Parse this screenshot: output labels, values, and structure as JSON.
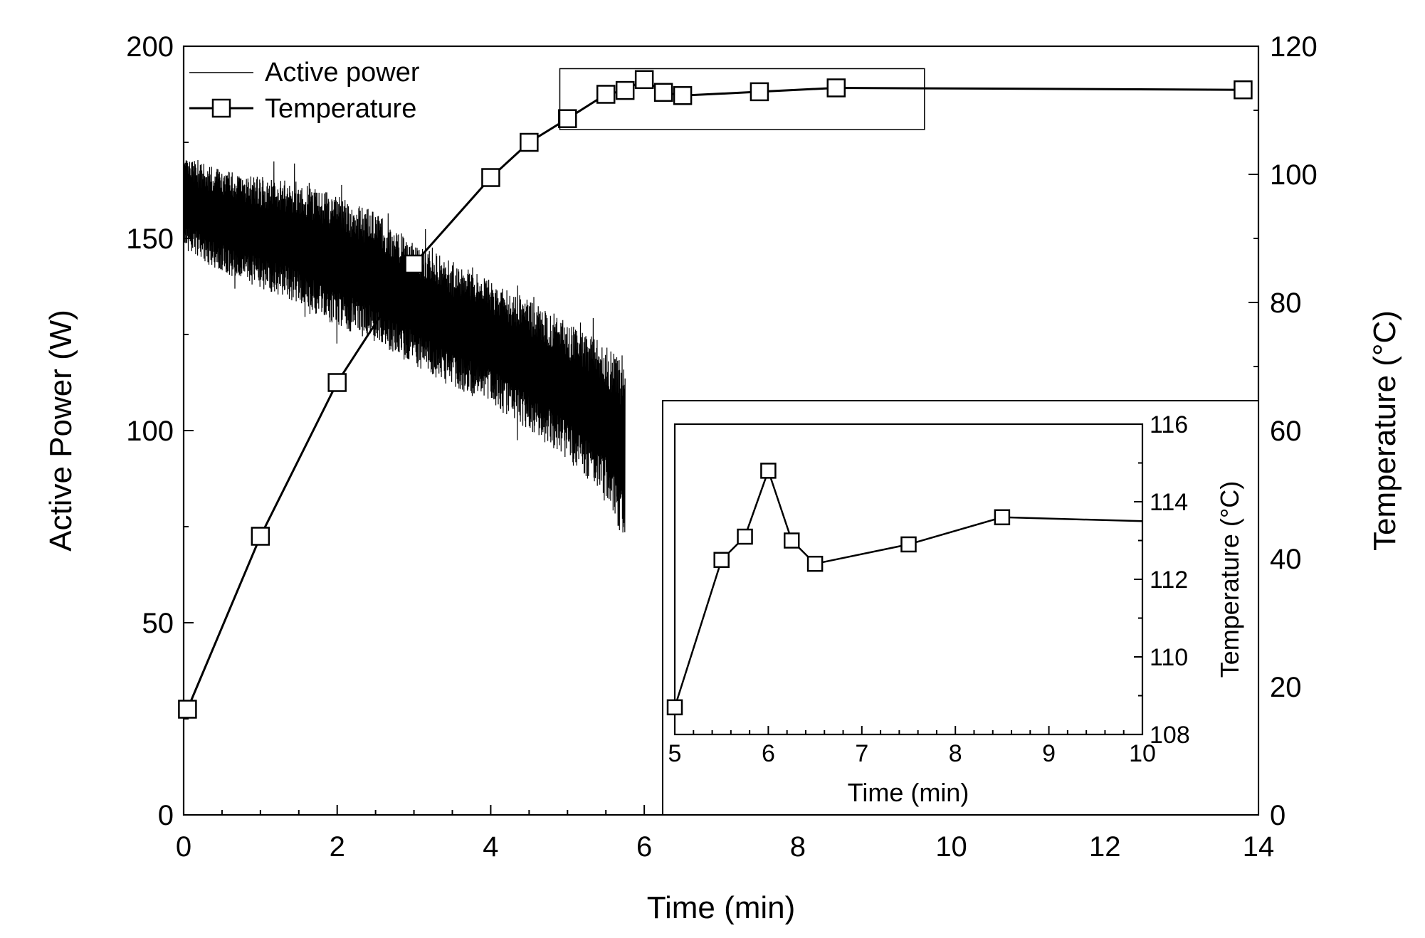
{
  "chart_data": [
    {
      "type": "line",
      "role": "main",
      "xlabel": "Time (min)",
      "ylabel_left": "Active Power (W)",
      "ylabel_right": "Temperature (°C)",
      "xlim": [
        0,
        14
      ],
      "ylim_left": [
        0,
        200
      ],
      "ylim_right": [
        0,
        120
      ],
      "x_ticks": [
        0,
        2,
        4,
        6,
        8,
        10,
        12,
        14
      ],
      "y_left_ticks": [
        0,
        50,
        100,
        150,
        200
      ],
      "y_right_ticks": [
        0,
        20,
        40,
        60,
        80,
        100,
        120
      ],
      "grid": false,
      "legend_position": "top-left",
      "legend": [
        "Active power",
        "Temperature"
      ],
      "series": [
        {
          "name": "Active power",
          "axis": "left",
          "style": "thin line, oscillating",
          "envelope": {
            "x": [
              0,
              0.5,
              1,
              1.5,
              2,
              2.5,
              3,
              3.5,
              4,
              4.5,
              5,
              5.5,
              5.75
            ],
            "upper": [
              171,
              168,
              166,
              165,
              161,
              157,
              149,
              144,
              139,
              134,
              129,
              122,
              118
            ],
            "lower": [
              147,
              141,
              137,
              133,
              127,
              123,
              117,
              111,
              107,
              100,
              92,
              83,
              70
            ]
          }
        },
        {
          "name": "Temperature",
          "axis": "right",
          "style": "line with open square markers",
          "x": [
            0.05,
            1,
            2,
            3,
            4,
            4.5,
            5,
            5.5,
            5.75,
            6,
            6.25,
            6.5,
            7.5,
            8.5,
            13.8
          ],
          "y": [
            16.5,
            43.5,
            67.5,
            86,
            99.5,
            105,
            108.7,
            112.5,
            113.1,
            114.8,
            112.8,
            112.3,
            112.9,
            113.5,
            113.2
          ]
        }
      ],
      "zoom_box": {
        "x": [
          4.9,
          9.65
        ],
        "y_right": [
          107,
          116.5
        ]
      }
    },
    {
      "type": "line",
      "role": "inset",
      "xlabel": "Time (min)",
      "ylabel_right": "Temperature (°C)",
      "xlim": [
        5,
        10
      ],
      "ylim": [
        108,
        116
      ],
      "x_ticks": [
        5,
        6,
        7,
        8,
        9,
        10
      ],
      "y_ticks": [
        108,
        110,
        112,
        114,
        116
      ],
      "series": [
        {
          "name": "Temperature",
          "style": "line with open square markers",
          "x": [
            5.0,
            5.5,
            5.75,
            6.0,
            6.25,
            6.5,
            7.5,
            8.5,
            10.0
          ],
          "y": [
            108.7,
            112.5,
            113.1,
            114.8,
            113.0,
            112.4,
            112.9,
            113.6,
            113.5
          ],
          "marker_count": 8
        }
      ]
    }
  ],
  "colors": {
    "ink": "#000000",
    "background": "#ffffff",
    "marker_fill": "#ffffff"
  }
}
